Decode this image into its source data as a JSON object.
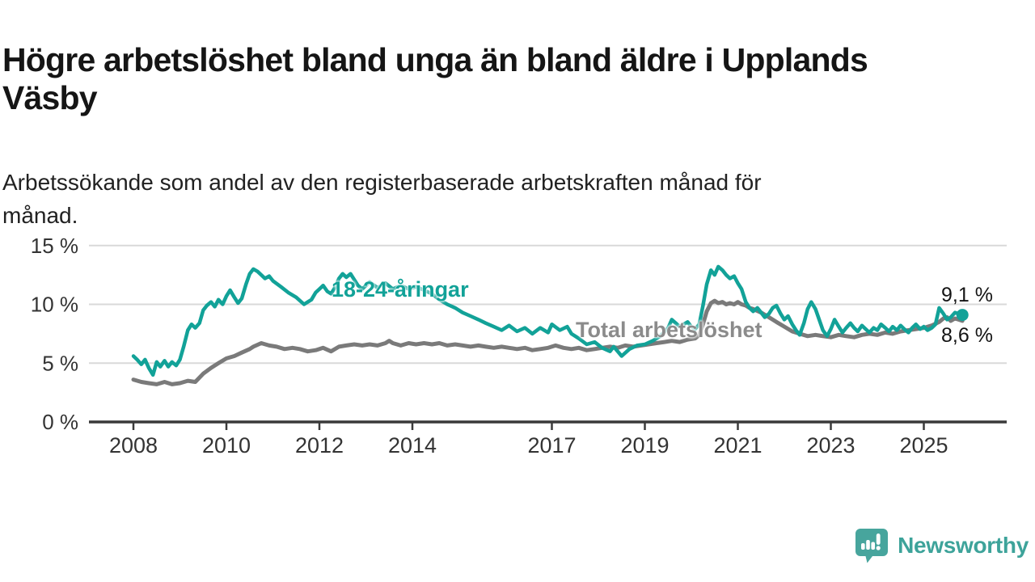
{
  "header": {
    "title": "Högre arbetslöshet bland unga än bland äldre i Upplands\nVäsby",
    "subtitle": "Arbetssökande som andel av den registerbaserade arbetskraften månad för\nmånad."
  },
  "chart_data": {
    "type": "line",
    "title": "Högre arbetslöshet bland unga än bland äldre i Upplands Väsby",
    "subtitle": "Arbetssökande som andel av den registerbaserade arbetskraften månad för månad.",
    "xlabel": "",
    "ylabel": "",
    "grid": "horizontal",
    "legend_position": "inline-labels",
    "x_axis": {
      "range": [
        2007.05,
        2026.8
      ],
      "ticks": [
        2008,
        2010,
        2012,
        2014,
        2017,
        2019,
        2021,
        2023,
        2025
      ],
      "tick_labels": [
        "2008",
        "2010",
        "2012",
        "2014",
        "2017",
        "2019",
        "2021",
        "2023",
        "2025"
      ]
    },
    "y_axis": {
      "range": [
        0,
        15.9
      ],
      "ticks": [
        0,
        5,
        10,
        15
      ],
      "tick_labels": [
        "0 %",
        "5 %",
        "10 %",
        "15 %"
      ]
    },
    "series": [
      {
        "name": "Total arbetslöshet",
        "color": "#7a7a7a",
        "end_label": "8,6 %",
        "end_value": 8.6,
        "end_dot": false,
        "points": [
          [
            2008.0,
            3.6
          ],
          [
            2008.17,
            3.4
          ],
          [
            2008.33,
            3.3
          ],
          [
            2008.5,
            3.2
          ],
          [
            2008.67,
            3.4
          ],
          [
            2008.83,
            3.2
          ],
          [
            2009.0,
            3.3
          ],
          [
            2009.17,
            3.5
          ],
          [
            2009.33,
            3.4
          ],
          [
            2009.5,
            4.1
          ],
          [
            2009.67,
            4.6
          ],
          [
            2009.83,
            5.0
          ],
          [
            2010.0,
            5.4
          ],
          [
            2010.17,
            5.6
          ],
          [
            2010.33,
            5.9
          ],
          [
            2010.5,
            6.2
          ],
          [
            2010.58,
            6.4
          ],
          [
            2010.75,
            6.7
          ],
          [
            2010.92,
            6.5
          ],
          [
            2011.08,
            6.4
          ],
          [
            2011.25,
            6.2
          ],
          [
            2011.42,
            6.3
          ],
          [
            2011.58,
            6.2
          ],
          [
            2011.75,
            6.0
          ],
          [
            2011.92,
            6.1
          ],
          [
            2012.08,
            6.3
          ],
          [
            2012.25,
            6.0
          ],
          [
            2012.42,
            6.4
          ],
          [
            2012.58,
            6.5
          ],
          [
            2012.75,
            6.6
          ],
          [
            2012.92,
            6.5
          ],
          [
            2013.08,
            6.6
          ],
          [
            2013.25,
            6.5
          ],
          [
            2013.42,
            6.7
          ],
          [
            2013.5,
            6.9
          ],
          [
            2013.58,
            6.7
          ],
          [
            2013.75,
            6.5
          ],
          [
            2013.92,
            6.7
          ],
          [
            2014.08,
            6.6
          ],
          [
            2014.25,
            6.7
          ],
          [
            2014.42,
            6.6
          ],
          [
            2014.58,
            6.7
          ],
          [
            2014.75,
            6.5
          ],
          [
            2014.92,
            6.6
          ],
          [
            2015.08,
            6.5
          ],
          [
            2015.25,
            6.4
          ],
          [
            2015.42,
            6.5
          ],
          [
            2015.58,
            6.4
          ],
          [
            2015.75,
            6.3
          ],
          [
            2015.92,
            6.4
          ],
          [
            2016.08,
            6.3
          ],
          [
            2016.25,
            6.2
          ],
          [
            2016.42,
            6.3
          ],
          [
            2016.58,
            6.1
          ],
          [
            2016.75,
            6.2
          ],
          [
            2016.92,
            6.3
          ],
          [
            2017.08,
            6.5
          ],
          [
            2017.25,
            6.3
          ],
          [
            2017.42,
            6.2
          ],
          [
            2017.58,
            6.3
          ],
          [
            2017.75,
            6.1
          ],
          [
            2017.92,
            6.2
          ],
          [
            2018.08,
            6.3
          ],
          [
            2018.25,
            6.4
          ],
          [
            2018.42,
            6.3
          ],
          [
            2018.58,
            6.5
          ],
          [
            2018.75,
            6.4
          ],
          [
            2018.92,
            6.5
          ],
          [
            2019.08,
            6.6
          ],
          [
            2019.25,
            6.7
          ],
          [
            2019.42,
            6.8
          ],
          [
            2019.58,
            6.9
          ],
          [
            2019.75,
            6.8
          ],
          [
            2019.92,
            7.0
          ],
          [
            2020.08,
            7.1
          ],
          [
            2020.17,
            7.4
          ],
          [
            2020.25,
            8.3
          ],
          [
            2020.33,
            9.4
          ],
          [
            2020.42,
            10.1
          ],
          [
            2020.5,
            10.3
          ],
          [
            2020.58,
            10.1
          ],
          [
            2020.67,
            10.2
          ],
          [
            2020.75,
            10.0
          ],
          [
            2020.83,
            10.1
          ],
          [
            2020.92,
            10.0
          ],
          [
            2021.0,
            10.2
          ],
          [
            2021.08,
            10.0
          ],
          [
            2021.17,
            9.9
          ],
          [
            2021.25,
            9.7
          ],
          [
            2021.33,
            9.6
          ],
          [
            2021.5,
            9.3
          ],
          [
            2021.67,
            8.9
          ],
          [
            2021.83,
            8.5
          ],
          [
            2022.0,
            8.1
          ],
          [
            2022.17,
            7.7
          ],
          [
            2022.33,
            7.5
          ],
          [
            2022.5,
            7.3
          ],
          [
            2022.67,
            7.4
          ],
          [
            2022.83,
            7.3
          ],
          [
            2023.0,
            7.2
          ],
          [
            2023.17,
            7.4
          ],
          [
            2023.33,
            7.3
          ],
          [
            2023.5,
            7.2
          ],
          [
            2023.67,
            7.4
          ],
          [
            2023.83,
            7.5
          ],
          [
            2024.0,
            7.4
          ],
          [
            2024.17,
            7.6
          ],
          [
            2024.33,
            7.5
          ],
          [
            2024.5,
            7.7
          ],
          [
            2024.67,
            7.8
          ],
          [
            2024.83,
            7.9
          ],
          [
            2025.0,
            8.0
          ],
          [
            2025.17,
            8.2
          ],
          [
            2025.33,
            8.5
          ],
          [
            2025.42,
            8.8
          ],
          [
            2025.5,
            8.9
          ],
          [
            2025.58,
            8.6
          ],
          [
            2025.67,
            8.8
          ],
          [
            2025.75,
            8.7
          ],
          [
            2025.83,
            8.6
          ]
        ]
      },
      {
        "name": "18-24-åringar",
        "color": "#12a298",
        "end_label": "9,1 %",
        "end_value": 9.1,
        "end_dot": true,
        "points": [
          [
            2008.0,
            5.6
          ],
          [
            2008.08,
            5.3
          ],
          [
            2008.17,
            4.9
          ],
          [
            2008.25,
            5.3
          ],
          [
            2008.33,
            4.6
          ],
          [
            2008.42,
            4.0
          ],
          [
            2008.5,
            5.1
          ],
          [
            2008.58,
            4.7
          ],
          [
            2008.67,
            5.2
          ],
          [
            2008.75,
            4.7
          ],
          [
            2008.83,
            5.1
          ],
          [
            2008.92,
            4.8
          ],
          [
            2009.0,
            5.3
          ],
          [
            2009.08,
            6.4
          ],
          [
            2009.17,
            7.8
          ],
          [
            2009.25,
            8.3
          ],
          [
            2009.33,
            8.0
          ],
          [
            2009.42,
            8.4
          ],
          [
            2009.5,
            9.5
          ],
          [
            2009.58,
            9.9
          ],
          [
            2009.67,
            10.2
          ],
          [
            2009.75,
            9.8
          ],
          [
            2009.83,
            10.4
          ],
          [
            2009.92,
            10.0
          ],
          [
            2010.0,
            10.7
          ],
          [
            2010.08,
            11.2
          ],
          [
            2010.17,
            10.6
          ],
          [
            2010.25,
            10.1
          ],
          [
            2010.33,
            10.5
          ],
          [
            2010.42,
            11.7
          ],
          [
            2010.5,
            12.6
          ],
          [
            2010.58,
            13.0
          ],
          [
            2010.67,
            12.8
          ],
          [
            2010.75,
            12.5
          ],
          [
            2010.83,
            12.2
          ],
          [
            2010.92,
            12.4
          ],
          [
            2011.0,
            12.0
          ],
          [
            2011.17,
            11.5
          ],
          [
            2011.33,
            11.0
          ],
          [
            2011.5,
            10.6
          ],
          [
            2011.67,
            10.0
          ],
          [
            2011.83,
            10.4
          ],
          [
            2011.92,
            11.0
          ],
          [
            2012.0,
            11.3
          ],
          [
            2012.08,
            11.6
          ],
          [
            2012.17,
            11.1
          ],
          [
            2012.25,
            10.9
          ],
          [
            2012.33,
            11.4
          ],
          [
            2012.42,
            12.2
          ],
          [
            2012.5,
            12.6
          ],
          [
            2012.58,
            12.3
          ],
          [
            2012.67,
            12.6
          ],
          [
            2012.75,
            12.1
          ],
          [
            2012.83,
            11.6
          ],
          [
            2012.92,
            11.3
          ],
          [
            2013.0,
            11.6
          ],
          [
            2013.08,
            11.9
          ],
          [
            2013.25,
            11.4
          ],
          [
            2013.42,
            11.8
          ],
          [
            2013.58,
            11.3
          ],
          [
            2013.75,
            11.6
          ],
          [
            2013.92,
            11.3
          ],
          [
            2014.08,
            11.5
          ],
          [
            2014.25,
            11.2
          ],
          [
            2014.42,
            10.9
          ],
          [
            2014.58,
            10.4
          ],
          [
            2014.75,
            10.0
          ],
          [
            2014.92,
            9.7
          ],
          [
            2015.08,
            9.3
          ],
          [
            2015.25,
            9.0
          ],
          [
            2015.42,
            8.7
          ],
          [
            2015.58,
            8.4
          ],
          [
            2015.75,
            8.1
          ],
          [
            2015.92,
            7.8
          ],
          [
            2016.08,
            8.2
          ],
          [
            2016.25,
            7.7
          ],
          [
            2016.42,
            8.0
          ],
          [
            2016.58,
            7.5
          ],
          [
            2016.75,
            8.0
          ],
          [
            2016.92,
            7.6
          ],
          [
            2017.0,
            8.3
          ],
          [
            2017.17,
            7.8
          ],
          [
            2017.33,
            8.1
          ],
          [
            2017.42,
            7.5
          ],
          [
            2017.58,
            7.1
          ],
          [
            2017.75,
            6.6
          ],
          [
            2017.92,
            6.8
          ],
          [
            2018.08,
            6.3
          ],
          [
            2018.25,
            6.0
          ],
          [
            2018.33,
            6.4
          ],
          [
            2018.5,
            5.6
          ],
          [
            2018.67,
            6.2
          ],
          [
            2018.83,
            6.5
          ],
          [
            2019.0,
            6.6
          ],
          [
            2019.17,
            6.9
          ],
          [
            2019.33,
            7.3
          ],
          [
            2019.5,
            8.0
          ],
          [
            2019.58,
            8.7
          ],
          [
            2019.75,
            8.1
          ],
          [
            2019.92,
            8.5
          ],
          [
            2020.0,
            8.1
          ],
          [
            2020.08,
            7.9
          ],
          [
            2020.17,
            8.3
          ],
          [
            2020.25,
            9.9
          ],
          [
            2020.33,
            11.7
          ],
          [
            2020.42,
            12.9
          ],
          [
            2020.5,
            12.5
          ],
          [
            2020.58,
            13.2
          ],
          [
            2020.67,
            12.9
          ],
          [
            2020.75,
            12.5
          ],
          [
            2020.83,
            12.2
          ],
          [
            2020.92,
            12.4
          ],
          [
            2021.0,
            11.8
          ],
          [
            2021.08,
            11.3
          ],
          [
            2021.17,
            10.2
          ],
          [
            2021.25,
            9.7
          ],
          [
            2021.33,
            9.4
          ],
          [
            2021.42,
            9.7
          ],
          [
            2021.5,
            9.3
          ],
          [
            2021.58,
            8.9
          ],
          [
            2021.67,
            9.2
          ],
          [
            2021.75,
            9.7
          ],
          [
            2021.83,
            9.9
          ],
          [
            2021.92,
            9.2
          ],
          [
            2022.0,
            8.7
          ],
          [
            2022.08,
            9.0
          ],
          [
            2022.17,
            8.3
          ],
          [
            2022.25,
            7.8
          ],
          [
            2022.33,
            7.4
          ],
          [
            2022.42,
            8.4
          ],
          [
            2022.5,
            9.6
          ],
          [
            2022.58,
            10.2
          ],
          [
            2022.67,
            9.6
          ],
          [
            2022.75,
            8.7
          ],
          [
            2022.83,
            7.8
          ],
          [
            2022.92,
            7.3
          ],
          [
            2023.0,
            7.9
          ],
          [
            2023.08,
            8.7
          ],
          [
            2023.17,
            8.1
          ],
          [
            2023.25,
            7.6
          ],
          [
            2023.33,
            8.0
          ],
          [
            2023.42,
            8.4
          ],
          [
            2023.5,
            8.0
          ],
          [
            2023.58,
            7.7
          ],
          [
            2023.67,
            8.2
          ],
          [
            2023.75,
            7.9
          ],
          [
            2023.83,
            7.6
          ],
          [
            2023.92,
            8.0
          ],
          [
            2024.0,
            7.8
          ],
          [
            2024.08,
            8.3
          ],
          [
            2024.17,
            8.0
          ],
          [
            2024.25,
            7.7
          ],
          [
            2024.33,
            8.1
          ],
          [
            2024.42,
            7.8
          ],
          [
            2024.5,
            8.2
          ],
          [
            2024.58,
            7.9
          ],
          [
            2024.67,
            7.6
          ],
          [
            2024.75,
            8.0
          ],
          [
            2024.83,
            8.3
          ],
          [
            2024.92,
            7.9
          ],
          [
            2025.0,
            8.1
          ],
          [
            2025.08,
            7.8
          ],
          [
            2025.17,
            8.0
          ],
          [
            2025.25,
            8.3
          ],
          [
            2025.33,
            9.7
          ],
          [
            2025.42,
            9.2
          ],
          [
            2025.5,
            8.7
          ],
          [
            2025.58,
            8.9
          ],
          [
            2025.67,
            9.3
          ],
          [
            2025.75,
            9.2
          ],
          [
            2025.83,
            9.1
          ]
        ]
      }
    ]
  },
  "colors": {
    "young_line": "#12a298",
    "total_line": "#7a7a7a",
    "grid_line": "#d9d9d9",
    "axis_line": "#3a3a3a",
    "tick_text": "#333333",
    "brand_teal": "#3da39a"
  },
  "footer": {
    "brand": "Newsworthy",
    "logo_icon": "speech-bubble-bar-chart-icon"
  }
}
